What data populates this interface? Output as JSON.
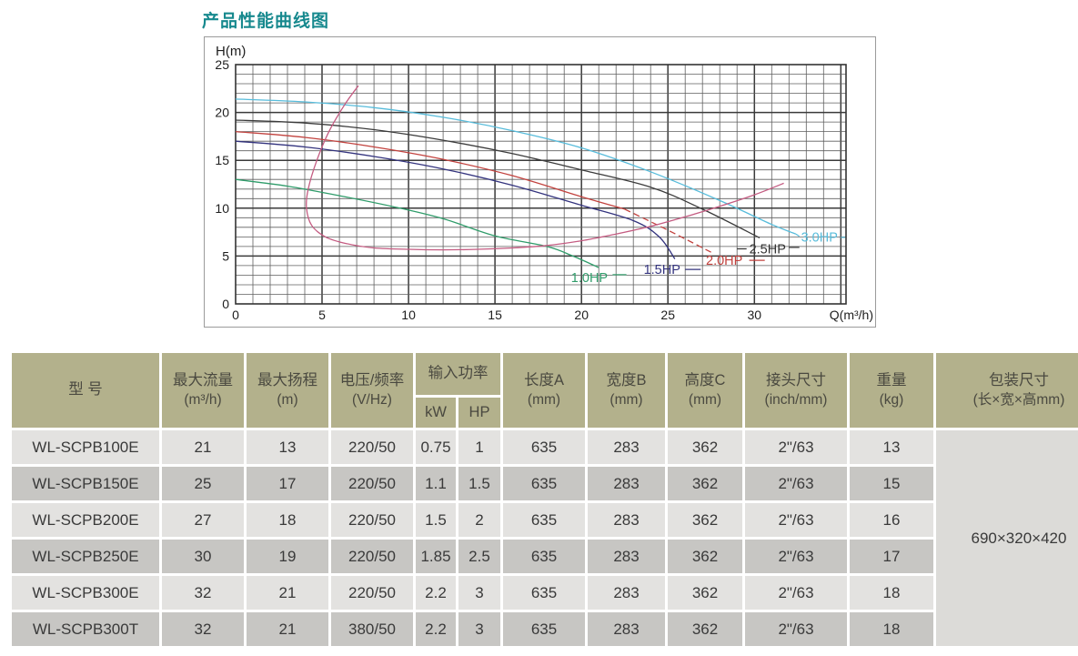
{
  "page_title": "产品性能曲线图",
  "chart_data": {
    "type": "line",
    "title": "产品性能曲线图",
    "xlabel": "Q(m³/h)",
    "ylabel": "H(m)",
    "xlim": [
      0,
      35.3
    ],
    "ylim": [
      0,
      25
    ],
    "x_ticks": [
      0,
      5,
      10,
      15,
      20,
      25,
      30
    ],
    "y_ticks": [
      0,
      5,
      10,
      15,
      20,
      25
    ],
    "minor_step": 1,
    "grid": true,
    "series": [
      {
        "name": "1.0HP",
        "color": "#2f9c6a",
        "dashed": false,
        "points": [
          [
            0,
            13
          ],
          [
            3,
            12.3
          ],
          [
            6,
            11.3
          ],
          [
            9,
            10.2
          ],
          [
            12,
            8.9
          ],
          [
            15,
            7.1
          ],
          [
            18,
            6.0
          ],
          [
            19.5,
            5.0
          ],
          [
            21,
            3.8
          ]
        ]
      },
      {
        "name": "1.5HP",
        "color": "#33337e",
        "dashed": false,
        "points": [
          [
            0,
            17
          ],
          [
            4,
            16.4
          ],
          [
            8,
            15.4
          ],
          [
            12,
            14.1
          ],
          [
            16,
            12.4
          ],
          [
            20,
            10.3
          ],
          [
            23,
            8.7
          ],
          [
            24.5,
            7.0
          ],
          [
            25.4,
            4.7
          ]
        ]
      },
      {
        "name": "2.0HP",
        "color": "#c2423e",
        "dashed": false,
        "points": [
          [
            0,
            18
          ],
          [
            4,
            17.4
          ],
          [
            8,
            16.4
          ],
          [
            12,
            15.1
          ],
          [
            16,
            13.4
          ],
          [
            20,
            11.2
          ],
          [
            22.5,
            9.9
          ]
        ]
      },
      {
        "name": "2.0HP-tail",
        "color": "#c2423e",
        "dashed": true,
        "points": [
          [
            22.5,
            9.9
          ],
          [
            25,
            7.7
          ],
          [
            27.5,
            5.4
          ]
        ]
      },
      {
        "name": "2.5HP",
        "color": "#3b3b3b",
        "dashed": false,
        "points": [
          [
            0,
            19.2
          ],
          [
            4,
            18.9
          ],
          [
            8,
            18.2
          ],
          [
            12,
            17.1
          ],
          [
            16,
            15.7
          ],
          [
            20,
            14.0
          ],
          [
            24,
            12.2
          ],
          [
            27,
            9.9
          ],
          [
            30.3,
            6.9
          ]
        ]
      },
      {
        "name": "3.0HP",
        "color": "#57bcdb",
        "dashed": false,
        "points": [
          [
            0,
            21.4
          ],
          [
            4,
            21.1
          ],
          [
            8,
            20.5
          ],
          [
            12,
            19.5
          ],
          [
            16,
            18.1
          ],
          [
            20,
            16.3
          ],
          [
            24,
            13.8
          ],
          [
            28,
            10.8
          ],
          [
            31,
            8.3
          ],
          [
            32.4,
            7.3
          ]
        ]
      },
      {
        "name": "operating-range-curve",
        "color": "#c45c82",
        "dashed": false,
        "points": [
          [
            7.1,
            22.8
          ],
          [
            6.3,
            20.8
          ],
          [
            5.4,
            18.0
          ],
          [
            4.7,
            15.0
          ],
          [
            4.2,
            12.0
          ],
          [
            4.1,
            10.0
          ],
          [
            4.4,
            8.2
          ],
          [
            5.2,
            7.0
          ],
          [
            6.4,
            6.3
          ],
          [
            8,
            5.85
          ],
          [
            10,
            5.7
          ],
          [
            12,
            5.65
          ],
          [
            14,
            5.7
          ],
          [
            16,
            5.85
          ],
          [
            18,
            6.1
          ],
          [
            20,
            6.6
          ],
          [
            22,
            7.3
          ],
          [
            24,
            8.1
          ],
          [
            26,
            9.1
          ],
          [
            28,
            10.2
          ],
          [
            30,
            11.4
          ],
          [
            31.7,
            12.6
          ]
        ]
      }
    ],
    "labels": [
      {
        "text": "1.0HP",
        "color": "#2f9c6a",
        "x": 19.4,
        "y": 2.75
      },
      {
        "text": "1.5HP",
        "color": "#33337e",
        "x": 23.6,
        "y": 3.6
      },
      {
        "text": "2.0HP",
        "color": "#c2423e",
        "x": 27.2,
        "y": 4.55
      },
      {
        "text": "2.5HP",
        "color": "#333333",
        "x": 29.7,
        "y": 5.75
      },
      {
        "text": "3.0HP",
        "color": "#57bcdb",
        "x": 32.7,
        "y": 7.0
      }
    ],
    "leaders": [
      {
        "color": "#2f9c6a",
        "pts": [
          [
            21.8,
            3.05
          ],
          [
            22.6,
            3.05
          ]
        ]
      },
      {
        "color": "#33337e",
        "pts": [
          [
            26.0,
            3.6
          ],
          [
            26.9,
            3.6
          ]
        ]
      },
      {
        "color": "#c2423e",
        "pts": [
          [
            29.7,
            4.55
          ],
          [
            30.6,
            4.55
          ]
        ]
      },
      {
        "color": "#333333",
        "pts": [
          [
            29.0,
            5.75
          ],
          [
            29.55,
            5.75
          ]
        ]
      },
      {
        "color": "#333333",
        "pts": [
          [
            32.0,
            5.9
          ],
          [
            32.6,
            5.9
          ]
        ]
      },
      {
        "color": "#57bcdb",
        "pts": [
          [
            32.4,
            7.3
          ],
          [
            32.6,
            7.05
          ]
        ]
      },
      {
        "color": "#57bcdb",
        "pts": [
          [
            35.0,
            6.95
          ],
          [
            35.25,
            6.95
          ]
        ]
      }
    ],
    "legend_position": "on-curve"
  },
  "table": {
    "columns": [
      {
        "key": "model",
        "title": "型 号",
        "unit": ""
      },
      {
        "key": "max-flow",
        "title": "最大流量",
        "unit": "(m³/h)"
      },
      {
        "key": "max-head",
        "title": "最大扬程",
        "unit": "(m)"
      },
      {
        "key": "voltage",
        "title": "电压/频率",
        "unit": "(V/Hz)"
      },
      {
        "key": "input-power",
        "title": "输入功率",
        "sub": [
          "kW",
          "HP"
        ]
      },
      {
        "key": "length",
        "title": "长度A",
        "unit": "(mm)"
      },
      {
        "key": "width",
        "title": "宽度B",
        "unit": "(mm)"
      },
      {
        "key": "height",
        "title": "高度C",
        "unit": "(mm)"
      },
      {
        "key": "connector",
        "title": "接头尺寸",
        "unit": "(inch/mm)"
      },
      {
        "key": "weight",
        "title": "重量",
        "unit": "(kg)"
      },
      {
        "key": "packing",
        "title": "包装尺寸",
        "unit": "(长×宽×高mm)"
      }
    ],
    "col_keys": [
      "model",
      "max-flow",
      "max-head",
      "voltage",
      "kw",
      "hp",
      "length",
      "width",
      "height",
      "connector",
      "weight"
    ],
    "rows": [
      [
        "WL-SCPB100E",
        "21",
        "13",
        "220/50",
        "0.75",
        "1",
        "635",
        "283",
        "362",
        "2\"/63",
        "13"
      ],
      [
        "WL-SCPB150E",
        "25",
        "17",
        "220/50",
        "1.1",
        "1.5",
        "635",
        "283",
        "362",
        "2\"/63",
        "15"
      ],
      [
        "WL-SCPB200E",
        "27",
        "18",
        "220/50",
        "1.5",
        "2",
        "635",
        "283",
        "362",
        "2\"/63",
        "16"
      ],
      [
        "WL-SCPB250E",
        "30",
        "19",
        "220/50",
        "1.85",
        "2.5",
        "635",
        "283",
        "362",
        "2\"/63",
        "17"
      ],
      [
        "WL-SCPB300E",
        "32",
        "21",
        "220/50",
        "2.2",
        "3",
        "635",
        "283",
        "362",
        "2\"/63",
        "18"
      ],
      [
        "WL-SCPB300T",
        "32",
        "21",
        "380/50",
        "2.2",
        "3",
        "635",
        "283",
        "362",
        "2\"/63",
        "18"
      ]
    ],
    "packing_value": "690×320×420"
  },
  "colors": {
    "title_teal": "#17898e",
    "header_khaki": "#b3b18c",
    "row_light": "#e3e2e0",
    "row_dark": "#c7c6c3",
    "packing_bg": "#dcdbd8"
  }
}
